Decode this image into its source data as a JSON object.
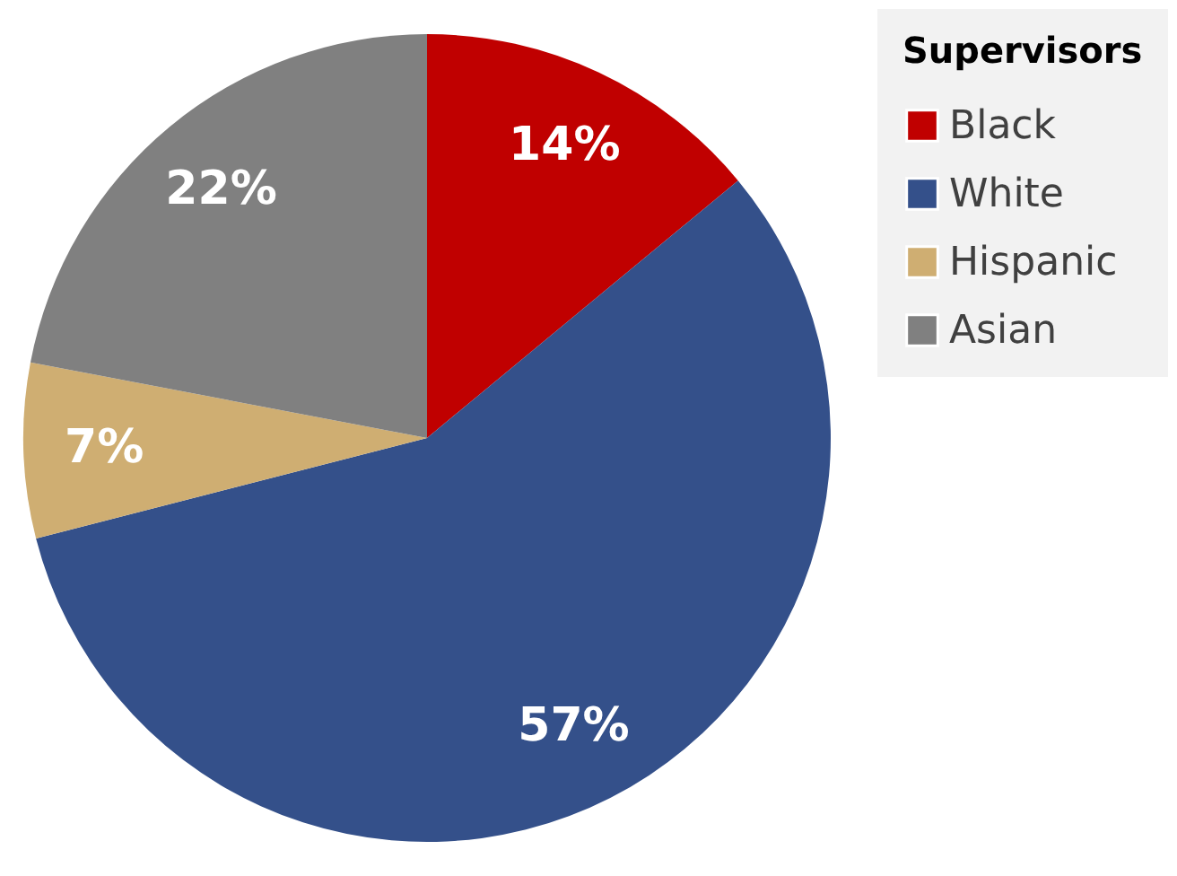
{
  "chart_data": {
    "type": "pie",
    "legend_title": "Supervisors",
    "categories": [
      "Black",
      "White",
      "Hispanic",
      "Asian"
    ],
    "values": [
      14,
      57,
      7,
      22
    ],
    "colors": [
      "#c00000",
      "#34508a",
      "#cfae72",
      "#808080"
    ],
    "value_labels": [
      "14%",
      "57%",
      "7%",
      "22%"
    ],
    "legend": "right"
  }
}
